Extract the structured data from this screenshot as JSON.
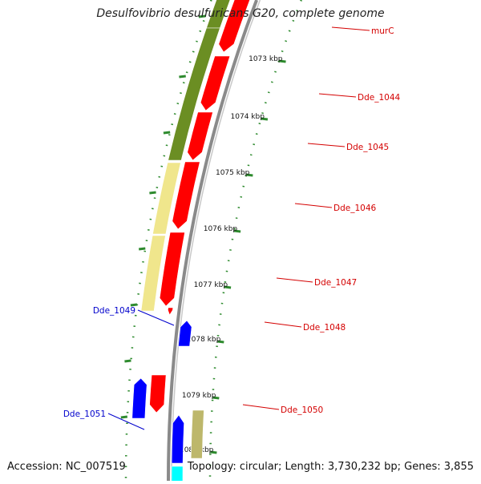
{
  "title": "Desulfovibrio desulfuricans G20, complete genome",
  "footer": {
    "accession": "Accession: NC_007519",
    "summary": "Topology: circular; Length: 3,730,232 bp; Genes: 3,855"
  },
  "colors": {
    "backbone": "#8a8a8a",
    "tick": "#2e8b2e",
    "gene_label_forward": "#d40000",
    "gene_label_reverse": "#0000cc"
  },
  "ticks": [
    {
      "label": "1073 kbp"
    },
    {
      "label": "1074 kbp"
    },
    {
      "label": "1075 kbp"
    },
    {
      "label": "1076 kbp"
    },
    {
      "label": "1077 kbp"
    },
    {
      "label": "1078 kbp"
    },
    {
      "label": "1079 kbp"
    },
    {
      "label": "1080 kbp"
    }
  ],
  "gene_labels": [
    {
      "name": "murC",
      "strand": "forward"
    },
    {
      "name": "Dde_1044",
      "strand": "forward"
    },
    {
      "name": "Dde_1045",
      "strand": "forward"
    },
    {
      "name": "Dde_1046",
      "strand": "forward"
    },
    {
      "name": "Dde_1047",
      "strand": "forward"
    },
    {
      "name": "Dde_1048",
      "strand": "forward"
    },
    {
      "name": "Dde_1049",
      "strand": "reverse"
    },
    {
      "name": "Dde_1050",
      "strand": "forward"
    },
    {
      "name": "Dde_1051",
      "strand": "reverse"
    }
  ],
  "genes": [
    {
      "ring": "forward",
      "color": "#ff0000",
      "direction": "forward"
    },
    {
      "ring": "forward",
      "color": "#ff0000",
      "direction": "forward"
    },
    {
      "ring": "forward",
      "color": "#ff0000",
      "direction": "forward"
    },
    {
      "ring": "forward",
      "color": "#ff0000",
      "direction": "forward"
    },
    {
      "ring": "forward",
      "color": "#ff0000",
      "direction": "forward"
    },
    {
      "ring": "forward",
      "color": "#ff0000",
      "direction": "forward"
    },
    {
      "ring": "forward",
      "color": "#ff0000",
      "direction": "forward"
    },
    {
      "ring": "reverse",
      "color": "#0000ff",
      "direction": "reverse"
    },
    {
      "ring": "reverse",
      "color": "#0000ff",
      "direction": "reverse"
    },
    {
      "ring": "reverse",
      "color": "#0000ff",
      "direction": "reverse"
    },
    {
      "ring": "reverse",
      "color": "#00ffff",
      "direction": "reverse"
    },
    {
      "ring": "cog",
      "color": "#6b8e23"
    },
    {
      "ring": "cog",
      "color": "#6b8e23"
    },
    {
      "ring": "cog",
      "color": "#f0e68c"
    },
    {
      "ring": "cog",
      "color": "#f0e68c"
    },
    {
      "ring": "cog",
      "color": "#bdb76b"
    }
  ]
}
